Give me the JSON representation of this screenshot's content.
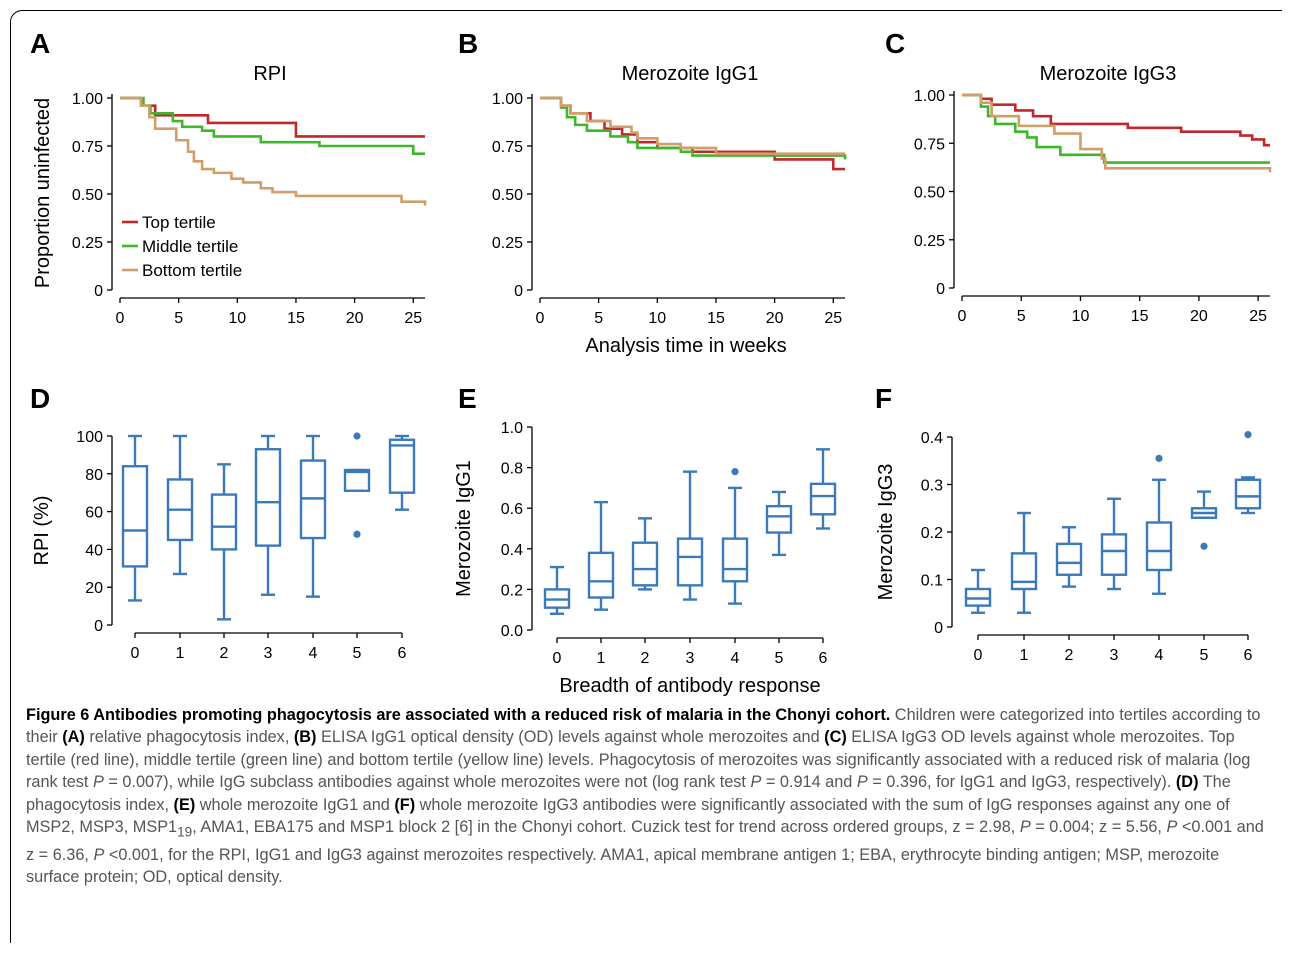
{
  "figure": {
    "panels": [
      {
        "letter": "A",
        "title": "RPI"
      },
      {
        "letter": "B",
        "title": "Merozoite IgG1"
      },
      {
        "letter": "C",
        "title": "Merozoite IgG3"
      },
      {
        "letter": "D",
        "title": ""
      },
      {
        "letter": "E",
        "title": ""
      },
      {
        "letter": "F",
        "title": ""
      }
    ],
    "km_ylabel": "Proportion uninfected",
    "km_xlabel": "Analysis time in weeks",
    "box_xlabel": "Breadth of antibody response",
    "box_ylabels": [
      "RPI (%)",
      "Merozoite IgG1",
      "Merozoite IgG3"
    ]
  },
  "colors": {
    "top": "#c1272d",
    "middle": "#3eb72b",
    "bottom": "#cf9e6b",
    "box": "#3b79b9"
  },
  "chart_data": [
    {
      "type": "line",
      "panel": "A",
      "title": "RPI",
      "xlabel": "",
      "ylabel": "Proportion uninfected",
      "xlim": [
        0,
        26
      ],
      "ylim": [
        0,
        1
      ],
      "xticks": [
        "0",
        "5",
        "10",
        "15",
        "20",
        "25"
      ],
      "yticks": [
        "0",
        "0.25",
        "0.50",
        "0.75",
        "1.00"
      ],
      "legend": {
        "placement": "bottom-left",
        "entries": [
          "Top tertile",
          "Middle tertile",
          "Bottom tertile"
        ]
      },
      "series": [
        {
          "name": "Top tertile",
          "color_key": "top",
          "x": [
            0,
            1.8,
            3,
            7.5,
            15,
            26
          ],
          "y": [
            1.0,
            0.96,
            0.91,
            0.87,
            0.8,
            0.8
          ]
        },
        {
          "name": "Middle tertile",
          "color_key": "middle",
          "x": [
            0,
            2,
            2.6,
            4.5,
            5.3,
            7,
            8,
            12,
            17,
            25,
            26
          ],
          "y": [
            1.0,
            0.96,
            0.92,
            0.88,
            0.85,
            0.83,
            0.8,
            0.77,
            0.75,
            0.71,
            0.71
          ],
          "step": true
        },
        {
          "name": "Bottom tertile",
          "color_key": "bottom",
          "x": [
            0,
            1.8,
            2.5,
            3,
            4.8,
            5.8,
            6.3,
            7,
            8,
            9.5,
            10.5,
            12,
            13,
            15,
            24,
            26
          ],
          "y": [
            1.0,
            0.96,
            0.9,
            0.84,
            0.78,
            0.72,
            0.67,
            0.63,
            0.61,
            0.58,
            0.56,
            0.53,
            0.51,
            0.49,
            0.46,
            0.44
          ]
        }
      ]
    },
    {
      "type": "line",
      "panel": "B",
      "title": "Merozoite IgG1",
      "xlabel": "Analysis time in weeks",
      "ylabel": "",
      "xlim": [
        0,
        26
      ],
      "ylim": [
        0,
        1
      ],
      "xticks": [
        "0",
        "5",
        "10",
        "15",
        "20",
        "25"
      ],
      "yticks": [
        "0",
        "0.25",
        "0.50",
        "0.75",
        "1.00"
      ],
      "series": [
        {
          "name": "Top tertile",
          "color_key": "top",
          "x": [
            0,
            1.8,
            2.6,
            4.3,
            5.5,
            7,
            8.3,
            10,
            13,
            20,
            25,
            26
          ],
          "y": [
            1.0,
            0.96,
            0.92,
            0.88,
            0.84,
            0.81,
            0.77,
            0.74,
            0.72,
            0.68,
            0.63,
            0.63
          ]
        },
        {
          "name": "Middle tertile",
          "color_key": "middle",
          "x": [
            0,
            1.8,
            2.3,
            3,
            4,
            6,
            7.5,
            8.3,
            12,
            13,
            26
          ],
          "y": [
            1.0,
            0.95,
            0.9,
            0.86,
            0.83,
            0.8,
            0.77,
            0.74,
            0.72,
            0.7,
            0.68
          ]
        },
        {
          "name": "Bottom tertile",
          "color_key": "bottom",
          "x": [
            0,
            1.8,
            2.6,
            4,
            6,
            7.8,
            8.3,
            10,
            12,
            15,
            26
          ],
          "y": [
            1.0,
            0.96,
            0.92,
            0.88,
            0.85,
            0.82,
            0.79,
            0.76,
            0.74,
            0.71,
            0.71
          ]
        }
      ]
    },
    {
      "type": "line",
      "panel": "C",
      "title": "Merozoite IgG3",
      "xlabel": "",
      "ylabel": "",
      "xlim": [
        0,
        26
      ],
      "ylim": [
        0,
        1
      ],
      "xticks": [
        "0",
        "5",
        "10",
        "15",
        "20",
        "25"
      ],
      "yticks": [
        "0",
        "0.25",
        "0.50",
        "0.75",
        "1.00"
      ],
      "series": [
        {
          "name": "Top tertile",
          "color_key": "top",
          "x": [
            0,
            1.6,
            2.5,
            4.5,
            6,
            7.5,
            14,
            18.5,
            23.5,
            24.5,
            25.5,
            26
          ],
          "y": [
            1.0,
            0.98,
            0.95,
            0.92,
            0.89,
            0.85,
            0.83,
            0.81,
            0.79,
            0.77,
            0.74,
            0.74
          ]
        },
        {
          "name": "Middle tertile",
          "color_key": "middle",
          "x": [
            0,
            1.6,
            2.2,
            2.8,
            4.5,
            5.5,
            6.3,
            8.3,
            12,
            26
          ],
          "y": [
            1.0,
            0.94,
            0.89,
            0.85,
            0.81,
            0.78,
            0.73,
            0.69,
            0.65,
            0.65
          ]
        },
        {
          "name": "Bottom tertile",
          "color_key": "bottom",
          "x": [
            0,
            1.6,
            2.5,
            4.8,
            7.8,
            10,
            11.8,
            12.1,
            25.8,
            26
          ],
          "y": [
            1.0,
            0.96,
            0.89,
            0.84,
            0.8,
            0.72,
            0.67,
            0.62,
            0.62,
            0.6
          ]
        }
      ]
    },
    {
      "type": "box",
      "panel": "D",
      "xlabel": "",
      "ylabel": "RPI (%)",
      "ylim": [
        0,
        100
      ],
      "yticks": [
        "0",
        "20",
        "40",
        "60",
        "80",
        "100"
      ],
      "categories": [
        "0",
        "1",
        "2",
        "3",
        "4",
        "5",
        "6"
      ],
      "boxes": [
        {
          "min": 13,
          "q1": 31,
          "median": 50,
          "q3": 84,
          "max": 100,
          "outliers": []
        },
        {
          "min": 27,
          "q1": 45,
          "median": 61,
          "q3": 77,
          "max": 100,
          "outliers": []
        },
        {
          "min": 3,
          "q1": 40,
          "median": 52,
          "q3": 69,
          "max": 85,
          "outliers": []
        },
        {
          "min": 16,
          "q1": 42,
          "median": 65,
          "q3": 93,
          "max": 100,
          "outliers": []
        },
        {
          "min": 15,
          "q1": 46,
          "median": 67,
          "q3": 87,
          "max": 100,
          "outliers": []
        },
        {
          "min": 71,
          "q1": 71,
          "median": 81,
          "q3": 82,
          "max": 82,
          "outliers": [
            48,
            100
          ]
        },
        {
          "min": 61,
          "q1": 70,
          "median": 95,
          "q3": 98,
          "max": 100,
          "outliers": []
        }
      ]
    },
    {
      "type": "box",
      "panel": "E",
      "xlabel": "Breadth of antibody response",
      "ylabel": "Merozoite IgG1",
      "ylim": [
        0,
        1
      ],
      "yticks": [
        "0.0",
        "0.2",
        "0.4",
        "0.6",
        "0.8",
        "1.0"
      ],
      "categories": [
        "0",
        "1",
        "2",
        "3",
        "4",
        "5",
        "6"
      ],
      "boxes": [
        {
          "min": 0.08,
          "q1": 0.11,
          "median": 0.15,
          "q3": 0.2,
          "max": 0.31,
          "outliers": []
        },
        {
          "min": 0.1,
          "q1": 0.16,
          "median": 0.24,
          "q3": 0.38,
          "max": 0.63,
          "outliers": []
        },
        {
          "min": 0.2,
          "q1": 0.22,
          "median": 0.3,
          "q3": 0.43,
          "max": 0.55,
          "outliers": []
        },
        {
          "min": 0.15,
          "q1": 0.22,
          "median": 0.36,
          "q3": 0.45,
          "max": 0.78,
          "outliers": []
        },
        {
          "min": 0.13,
          "q1": 0.24,
          "median": 0.3,
          "q3": 0.45,
          "max": 0.7,
          "outliers": [
            0.78
          ]
        },
        {
          "min": 0.37,
          "q1": 0.48,
          "median": 0.56,
          "q3": 0.61,
          "max": 0.68,
          "outliers": []
        },
        {
          "min": 0.5,
          "q1": 0.57,
          "median": 0.66,
          "q3": 0.72,
          "max": 0.89,
          "outliers": []
        }
      ]
    },
    {
      "type": "box",
      "panel": "F",
      "xlabel": "",
      "ylabel": "Merozoite IgG3",
      "ylim": [
        0,
        0.4
      ],
      "yticks": [
        "0",
        "0.1",
        "0.2",
        "0.3",
        "0.4"
      ],
      "categories": [
        "0",
        "1",
        "2",
        "3",
        "4",
        "5",
        "6"
      ],
      "boxes": [
        {
          "min": 0.03,
          "q1": 0.045,
          "median": 0.06,
          "q3": 0.08,
          "max": 0.12,
          "outliers": []
        },
        {
          "min": 0.03,
          "q1": 0.08,
          "median": 0.095,
          "q3": 0.155,
          "max": 0.24,
          "outliers": []
        },
        {
          "min": 0.085,
          "q1": 0.11,
          "median": 0.135,
          "q3": 0.175,
          "max": 0.21,
          "outliers": []
        },
        {
          "min": 0.08,
          "q1": 0.11,
          "median": 0.16,
          "q3": 0.195,
          "max": 0.27,
          "outliers": []
        },
        {
          "min": 0.07,
          "q1": 0.12,
          "median": 0.16,
          "q3": 0.22,
          "max": 0.31,
          "outliers": [
            0.355
          ]
        },
        {
          "min": 0.23,
          "q1": 0.23,
          "median": 0.24,
          "q3": 0.25,
          "max": 0.285,
          "outliers": [
            0.17
          ]
        },
        {
          "min": 0.24,
          "q1": 0.25,
          "median": 0.275,
          "q3": 0.31,
          "max": 0.315,
          "outliers": [
            0.405
          ]
        }
      ]
    }
  ],
  "caption": {
    "title": "Figure 6 Antibodies promoting phagocytosis are associated with a reduced risk of malaria in the Chonyi cohort.",
    "p1_a": " Children were categorized into tertiles according to their ",
    "l_A": "(A)",
    "p1_b": " relative phagocytosis index, ",
    "l_B": "(B)",
    "p1_c": " ELISA IgG1 optical density (OD) levels against whole merozoites and ",
    "l_C": "(C)",
    "p1_d": " ELISA IgG3 OD levels against whole merozoites. Top tertile (red line), middle tertile (green line) and bottom tertile (yellow line) levels. Phagocytosis of merozoites was significantly associated with a reduced risk of malaria (log rank test ",
    "p_sym": "P",
    "p1_e": " = 0.007), while IgG subclass antibodies against whole merozoites were not (log rank test ",
    "p1_f": " = 0.914 and ",
    "p1_g": " = 0.396, for IgG1 and IgG3, respectively). ",
    "l_D": "(D)",
    "p1_h": " The phagocytosis index, ",
    "l_E": "(E)",
    "p1_i": " whole merozoite IgG1 and ",
    "l_F": "(F)",
    "p1_j": " whole merozoite IgG3 antibodies were significantly associated with the sum of IgG responses against any one of MSP2, MSP3, MSP1",
    "sub19": "19",
    "p1_k": ", AMA1, EBA175 and MSP1 block 2 [6] in the Chonyi cohort. Cuzick test for trend across ordered groups, z = 2.98, ",
    "p1_l": " = 0.004; z = 5.56, ",
    "p1_m": " <0.001 and z = 6.36, ",
    "p1_n": " <0.001, for the RPI, IgG1 and IgG3 against merozoites respectively. AMA1, apical membrane antigen 1; EBA, erythrocyte binding antigen; MSP, merozoite surface protein; OD, optical density."
  }
}
